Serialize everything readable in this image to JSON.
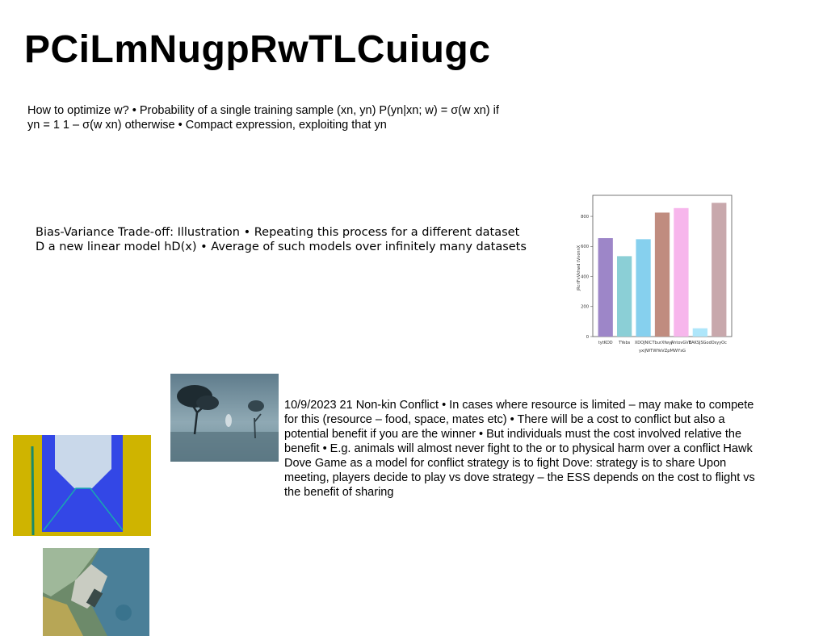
{
  "title": "PCiLmNugpRwTLCuiugc",
  "text_block_1": "How to optimize w? • Probability of a single training sample (xn, yn) P(yn|xn; w) = σ(w ⁠xn) if yn = 1 1 – σ(w ⁠xn) otherwise • Compact expression, exploiting that yn",
  "text_block_2": "Bias-Variance Trade-off: Illustration • Repeating this process for a different dataset D⁠ a new linear model hD(x) • Average of such models over infinitely many datasets",
  "text_block_3": "10/9/2023 21 Non-kin Conflict • In cases where resource is limited – may make to compete for this (resource – food, space, mates etc) • There will be a cost to conflict but also a potential benefit if you are the winner • But individuals must the cost involved relative the benefit • E.g. animals will almost never fight to the or to physical harm over a conflict Hawk Dove Game as a model for conflict strategy is to fight Dove: strategy is to share Upon meeting, players decide to play vs dove strategy – the ESS depends on the cost to flight vs the benefit of sharing",
  "chart_data": {
    "type": "bar",
    "categories": [
      "tytKDD",
      "TYebs",
      "XDOJNIC",
      "TburXfwyj",
      "AhtovGVB",
      "EAKSJSGod",
      "OsyyOc"
    ],
    "values": [
      655,
      535,
      648,
      825,
      855,
      55,
      890
    ],
    "colors": [
      "#9d86c8",
      "#8bcfd6",
      "#86d0ee",
      "#c08c7f",
      "#f7b6ec",
      "#aee6fa",
      "#c8a8ac"
    ],
    "title": "",
    "xlabel": "yxiJWTWYeVZpMWYsG",
    "ylabel": "jRcrlFvVkhwd tVvonnX",
    "ylim": [
      0,
      940
    ],
    "yticks": [
      0,
      200,
      400,
      600,
      800
    ],
    "grid": false
  },
  "images": {
    "tree": "misty-tree-photo",
    "envelope": "blue-envelope-photo",
    "aerial": "aerial-coast-photo"
  }
}
